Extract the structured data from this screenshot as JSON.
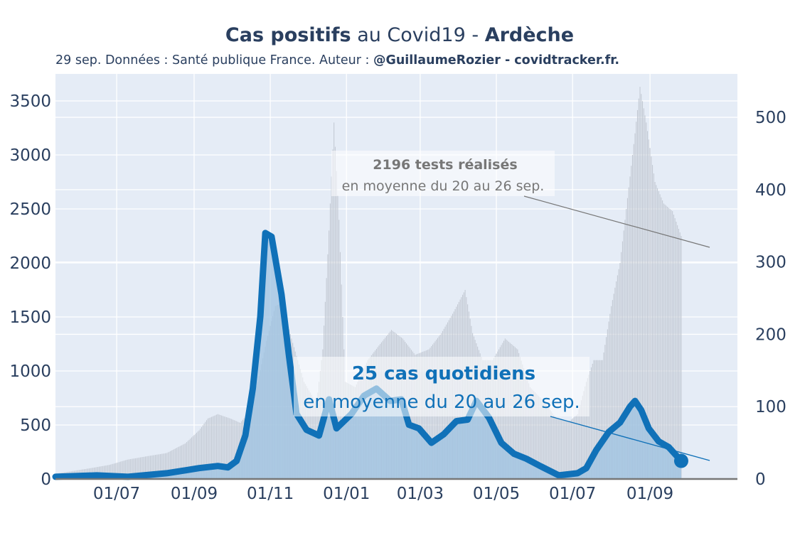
{
  "header": {
    "title_part1": "Cas positifs",
    "title_part2": " au Covid19 - ",
    "title_part3": "Ardèche",
    "subtitle_part1": "29 sep. Données : Santé publique France. Auteur : ",
    "subtitle_part2": "@GuillaumeRozier - covidtracker.fr."
  },
  "colors": {
    "plot_bg": "#e5ecf6",
    "grid": "#ffffff",
    "tests_bars": "#c2c8d2",
    "cases_area": "#9dc3e2",
    "cases_line": "#1071b8",
    "text": "#2a3f5f",
    "annotation_grey": "#777777"
  },
  "annotations": {
    "tests": {
      "bold": "2196 tests réalisés",
      "text": "en moyenne du 20 au 26 sep."
    },
    "cases": {
      "bold": "25 cas quotidiens",
      "text": "en moyenne du 20 au 26 sep."
    }
  },
  "chart_data": {
    "type": "area",
    "x_ticks": [
      "01/07",
      "01/09",
      "01/11",
      "01/01",
      "01/03",
      "01/05",
      "01/07",
      "01/09"
    ],
    "x_tick_dates": [
      "2020-07-01",
      "2020-09-01",
      "2020-11-01",
      "2021-01-01",
      "2021-03-01",
      "2021-05-01",
      "2021-07-01",
      "2021-09-01"
    ],
    "x_range": [
      "2020-05-13",
      "2021-11-10"
    ],
    "y_left": {
      "series": "tests",
      "range": [
        0,
        3750
      ],
      "ticks": [
        0,
        500,
        1000,
        1500,
        2000,
        2500,
        3000,
        3500
      ]
    },
    "y_right": {
      "series": "cases",
      "range": [
        0,
        560
      ],
      "ticks": [
        0,
        100,
        200,
        300,
        400,
        500
      ]
    },
    "grid": true,
    "series": [
      {
        "name": "tests",
        "kind": "bars",
        "axis": "left",
        "points": [
          [
            "2020-05-13",
            50
          ],
          [
            "2020-05-25",
            70
          ],
          [
            "2020-06-10",
            100
          ],
          [
            "2020-06-25",
            130
          ],
          [
            "2020-07-10",
            180
          ],
          [
            "2020-07-25",
            210
          ],
          [
            "2020-08-10",
            240
          ],
          [
            "2020-08-25",
            330
          ],
          [
            "2020-09-05",
            450
          ],
          [
            "2020-09-12",
            560
          ],
          [
            "2020-09-20",
            600
          ],
          [
            "2020-09-30",
            560
          ],
          [
            "2020-10-08",
            520
          ],
          [
            "2020-10-15",
            620
          ],
          [
            "2020-10-22",
            900
          ],
          [
            "2020-10-29",
            1280
          ],
          [
            "2020-11-05",
            1600
          ],
          [
            "2020-11-10",
            1630
          ],
          [
            "2020-11-18",
            1300
          ],
          [
            "2020-11-28",
            900
          ],
          [
            "2020-12-08",
            700
          ],
          [
            "2020-12-13",
            1200
          ],
          [
            "2020-12-18",
            2300
          ],
          [
            "2020-12-22",
            3300
          ],
          [
            "2020-12-26",
            2400
          ],
          [
            "2020-12-31",
            900
          ],
          [
            "2021-01-08",
            850
          ],
          [
            "2021-01-18",
            1100
          ],
          [
            "2021-01-28",
            1250
          ],
          [
            "2021-02-06",
            1380
          ],
          [
            "2021-02-15",
            1300
          ],
          [
            "2021-02-25",
            1150
          ],
          [
            "2021-03-08",
            1200
          ],
          [
            "2021-03-18",
            1350
          ],
          [
            "2021-03-28",
            1550
          ],
          [
            "2021-04-06",
            1750
          ],
          [
            "2021-04-12",
            1350
          ],
          [
            "2021-04-20",
            1100
          ],
          [
            "2021-04-28",
            1100
          ],
          [
            "2021-05-08",
            1300
          ],
          [
            "2021-05-18",
            1200
          ],
          [
            "2021-05-28",
            850
          ],
          [
            "2021-06-08",
            720
          ],
          [
            "2021-06-18",
            560
          ],
          [
            "2021-06-28",
            530
          ],
          [
            "2021-07-05",
            600
          ],
          [
            "2021-07-12",
            900
          ],
          [
            "2021-07-18",
            1100
          ],
          [
            "2021-07-25",
            1100
          ],
          [
            "2021-08-01",
            1600
          ],
          [
            "2021-08-08",
            2000
          ],
          [
            "2021-08-14",
            2600
          ],
          [
            "2021-08-20",
            3200
          ],
          [
            "2021-08-24",
            3630
          ],
          [
            "2021-08-29",
            3300
          ],
          [
            "2021-09-05",
            2750
          ],
          [
            "2021-09-12",
            2550
          ],
          [
            "2021-09-19",
            2480
          ],
          [
            "2021-09-26",
            2250
          ]
        ]
      },
      {
        "name": "cases",
        "kind": "area+line",
        "axis": "right",
        "points": [
          [
            "2020-05-13",
            3
          ],
          [
            "2020-06-15",
            5
          ],
          [
            "2020-07-10",
            3
          ],
          [
            "2020-08-10",
            8
          ],
          [
            "2020-08-25",
            12
          ],
          [
            "2020-09-05",
            15
          ],
          [
            "2020-09-20",
            18
          ],
          [
            "2020-09-28",
            16
          ],
          [
            "2020-10-05",
            25
          ],
          [
            "2020-10-12",
            60
          ],
          [
            "2020-10-18",
            125
          ],
          [
            "2020-10-24",
            225
          ],
          [
            "2020-10-28",
            340
          ],
          [
            "2020-11-02",
            335
          ],
          [
            "2020-11-10",
            255
          ],
          [
            "2020-11-16",
            170
          ],
          [
            "2020-11-22",
            90
          ],
          [
            "2020-11-30",
            68
          ],
          [
            "2020-12-10",
            60
          ],
          [
            "2020-12-18",
            110
          ],
          [
            "2020-12-24",
            70
          ],
          [
            "2021-01-05",
            90
          ],
          [
            "2021-01-15",
            115
          ],
          [
            "2021-01-25",
            125
          ],
          [
            "2021-02-05",
            108
          ],
          [
            "2021-02-14",
            110
          ],
          [
            "2021-02-20",
            75
          ],
          [
            "2021-02-28",
            70
          ],
          [
            "2021-03-10",
            50
          ],
          [
            "2021-03-20",
            62
          ],
          [
            "2021-03-30",
            80
          ],
          [
            "2021-04-08",
            82
          ],
          [
            "2021-04-15",
            108
          ],
          [
            "2021-04-25",
            85
          ],
          [
            "2021-05-05",
            50
          ],
          [
            "2021-05-15",
            35
          ],
          [
            "2021-05-25",
            28
          ],
          [
            "2021-06-05",
            18
          ],
          [
            "2021-06-20",
            5
          ],
          [
            "2021-07-05",
            8
          ],
          [
            "2021-07-12",
            15
          ],
          [
            "2021-07-20",
            40
          ],
          [
            "2021-07-30",
            65
          ],
          [
            "2021-08-08",
            78
          ],
          [
            "2021-08-16",
            100
          ],
          [
            "2021-08-20",
            108
          ],
          [
            "2021-08-25",
            95
          ],
          [
            "2021-08-31",
            70
          ],
          [
            "2021-09-08",
            52
          ],
          [
            "2021-09-16",
            44
          ],
          [
            "2021-09-26",
            25
          ]
        ]
      }
    ]
  }
}
